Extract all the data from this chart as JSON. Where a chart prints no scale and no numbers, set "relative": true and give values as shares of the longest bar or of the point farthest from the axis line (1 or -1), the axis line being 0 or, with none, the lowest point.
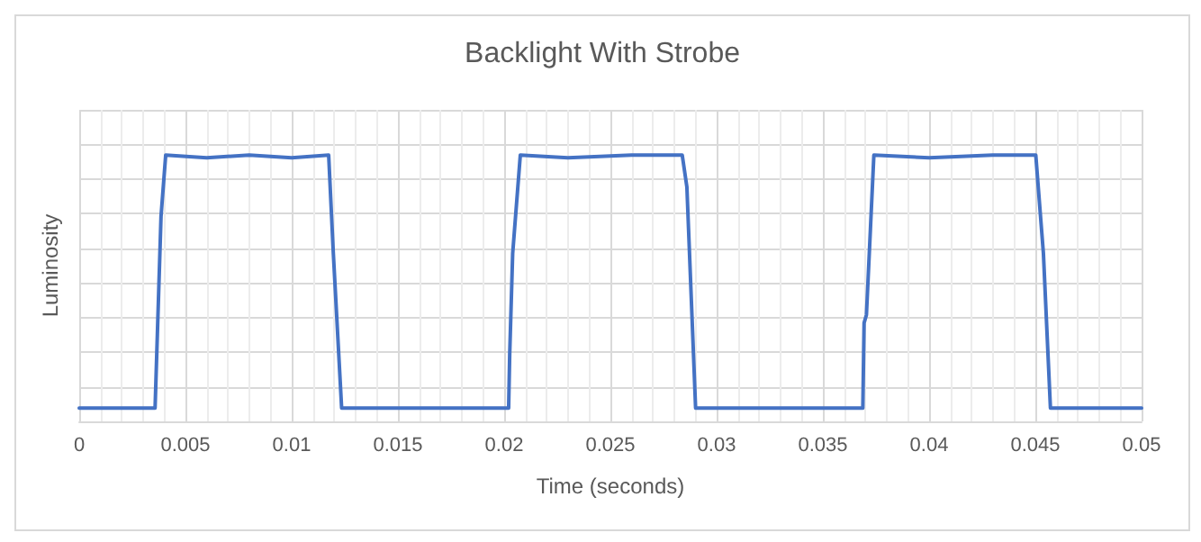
{
  "chart_data": {
    "type": "line",
    "title": "Backlight With Strobe",
    "xlabel": "Time (seconds)",
    "ylabel": "Luminosity",
    "relative": true,
    "grid": true,
    "marker": "none",
    "line_style": "solid",
    "xlim": [
      0,
      0.05
    ],
    "xticks": [
      0,
      0.005,
      0.01,
      0.015,
      0.02,
      0.025,
      0.03,
      0.035,
      0.04,
      0.045,
      0.05
    ],
    "series": [
      {
        "color": "#4472c4",
        "x": [
          0,
          0.00357,
          0.00385,
          0.00407,
          0.006,
          0.008,
          0.01,
          0.01174,
          0.01196,
          0.01235,
          0.016,
          0.02021,
          0.02026,
          0.0204,
          0.02076,
          0.023,
          0.026,
          0.02838,
          0.0286,
          0.02901,
          0.033,
          0.03688,
          0.03694,
          0.03705,
          0.0374,
          0.04,
          0.043,
          0.04502,
          0.04538,
          0.04571,
          0.05
        ],
        "values": [
          0.05,
          0.05,
          0.77,
          1,
          0.99,
          1,
          0.99,
          1,
          0.63,
          0.05,
          0.05,
          0.05,
          0.25,
          0.63,
          1,
          0.99,
          1,
          1,
          0.88,
          0.05,
          0.05,
          0.05,
          0.37,
          0.4,
          1,
          0.99,
          1,
          1,
          0.63,
          0.05,
          0.05
        ]
      }
    ]
  }
}
